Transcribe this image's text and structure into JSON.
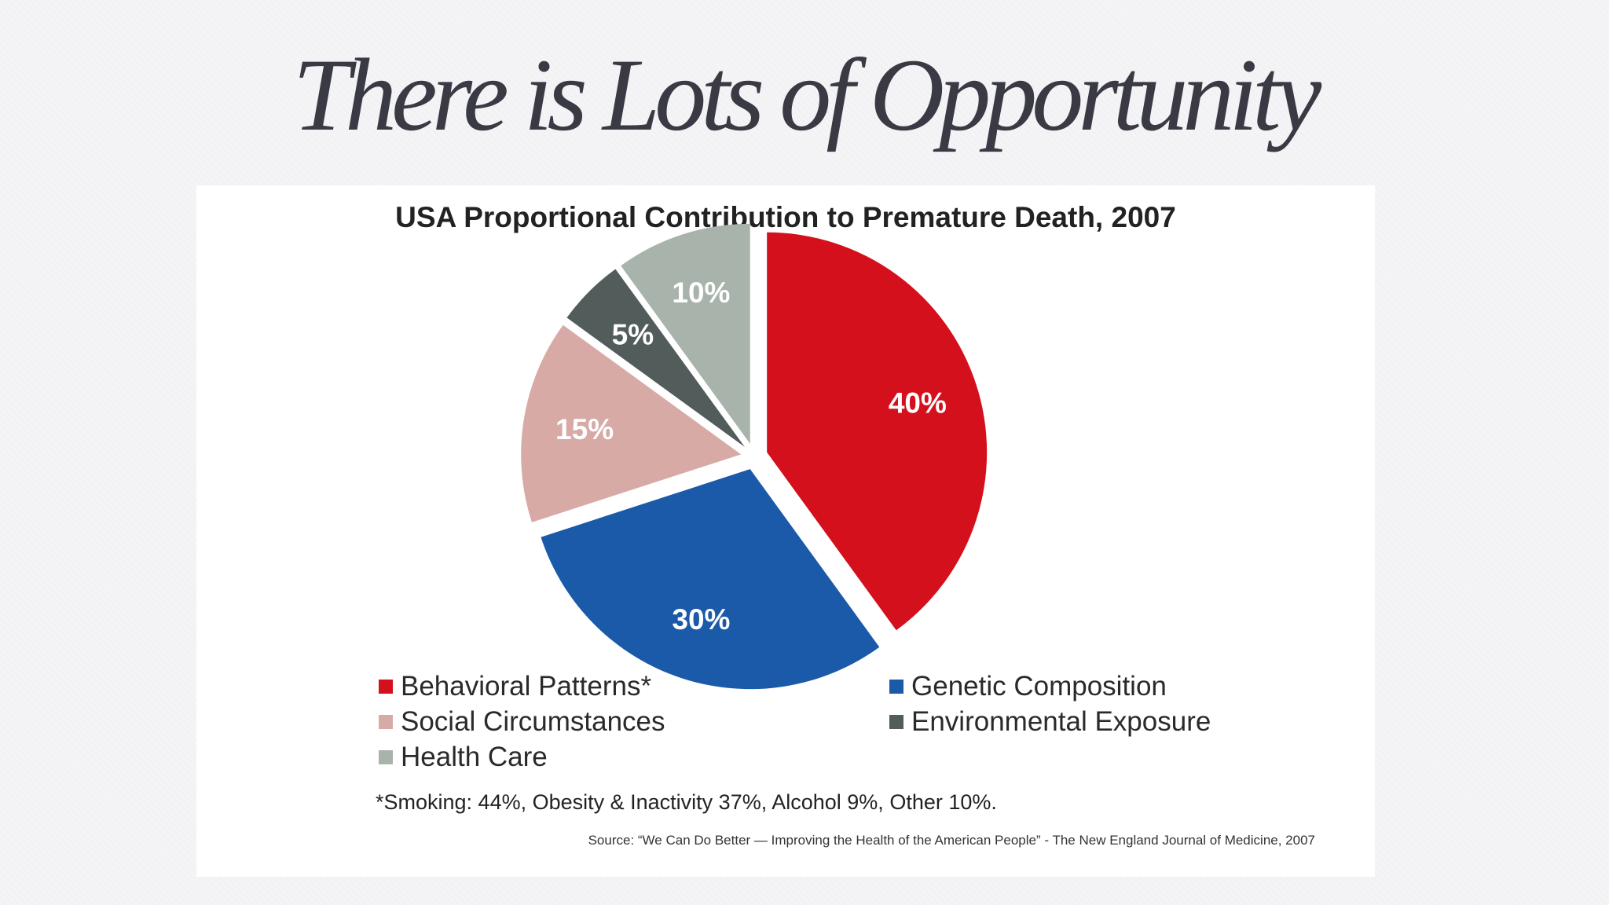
{
  "slide": {
    "title": "There is Lots of Opportunity"
  },
  "chart_data": {
    "type": "pie",
    "title": "USA Proportional Contribution to Premature Death, 2007",
    "slices": [
      {
        "name": "Behavioral Patterns*",
        "value": 40,
        "label": "40%",
        "color": "#d4101c"
      },
      {
        "name": "Genetic Composition",
        "value": 30,
        "label": "30%",
        "color": "#1b5aa8"
      },
      {
        "name": "Social Circumstances",
        "value": 15,
        "label": "15%",
        "color": "#d7aaa6"
      },
      {
        "name": "Environmental Exposure",
        "value": 5,
        "label": "5%",
        "color": "#525d5b"
      },
      {
        "name": "Health Care",
        "value": 10,
        "label": "10%",
        "color": "#a8b3ab"
      }
    ],
    "legend": [
      {
        "text": "Behavioral Patterns*",
        "color": "#d4101c"
      },
      {
        "text": "Genetic Composition",
        "color": "#1b5aa8"
      },
      {
        "text": "Social Circumstances",
        "color": "#d7aaa6"
      },
      {
        "text": "Environmental Exposure",
        "color": "#525d5b"
      },
      {
        "text": "Health Care",
        "color": "#a8b3ab"
      }
    ],
    "footnote": "*Smoking: 44%, Obesity & Inactivity 37%, Alcohol 9%, Other 10%.",
    "source": "Source: “We Can Do Better — Improving the Health of the American People” - The New England Journal of Medicine, 2007"
  }
}
